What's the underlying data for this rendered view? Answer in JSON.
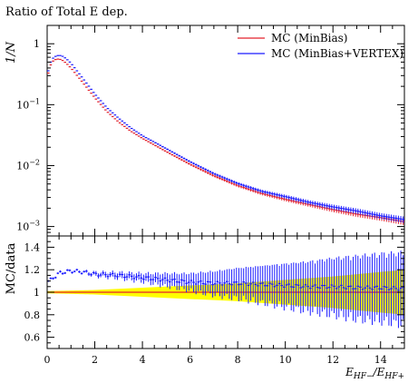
{
  "chart_data": [
    {
      "type": "scatter",
      "panel": "main",
      "title": "Ratio of Total E dep.",
      "ylabel": "1/N",
      "yscale": "log",
      "xlim": [
        0,
        15
      ],
      "ylim": [
        0.0007,
        2.0
      ],
      "x_ticks": [
        "0",
        "2",
        "4",
        "6",
        "8",
        "10",
        "12",
        "14"
      ],
      "y_ticks": [
        {
          "value": 1,
          "label": "1"
        },
        {
          "value": 0.1,
          "label": "10−1"
        },
        {
          "value": 0.01,
          "label": "10−2"
        },
        {
          "value": 0.001,
          "label": "10−3"
        }
      ],
      "legend_position": "top-right",
      "series": [
        {
          "name": "MC (MinBias)",
          "color": "#e3202b",
          "x": [
            0.05,
            0.15,
            0.25,
            0.35,
            0.45,
            0.6,
            0.8,
            1.0,
            1.5,
            2.0,
            2.5,
            3.0,
            3.5,
            4.0,
            5.0,
            6.0,
            7.0,
            8.0,
            9.0,
            10.0,
            11.0,
            12.0,
            13.0,
            14.0,
            15.0
          ],
          "y": [
            0.33,
            0.45,
            0.52,
            0.55,
            0.56,
            0.55,
            0.48,
            0.4,
            0.23,
            0.13,
            0.078,
            0.052,
            0.037,
            0.028,
            0.017,
            0.0105,
            0.0068,
            0.0047,
            0.0035,
            0.0028,
            0.0023,
            0.0019,
            0.0016,
            0.0014,
            0.0012
          ]
        },
        {
          "name": "MC (MinBias+VERTEX)",
          "color": "#1a1aff",
          "x": [
            0.05,
            0.15,
            0.25,
            0.35,
            0.45,
            0.6,
            0.8,
            1.0,
            1.5,
            2.0,
            2.5,
            3.0,
            3.5,
            4.0,
            5.0,
            6.0,
            7.0,
            8.0,
            9.0,
            10.0,
            11.0,
            12.0,
            13.0,
            14.0,
            15.0
          ],
          "y": [
            0.36,
            0.5,
            0.58,
            0.62,
            0.64,
            0.64,
            0.57,
            0.48,
            0.27,
            0.15,
            0.09,
            0.06,
            0.042,
            0.031,
            0.019,
            0.0116,
            0.0074,
            0.0051,
            0.0038,
            0.0031,
            0.0025,
            0.0021,
            0.0018,
            0.0015,
            0.0013
          ]
        }
      ]
    },
    {
      "type": "scatter",
      "panel": "ratio",
      "xlabel": "E_{HF−}/E_{HF+}",
      "ylabel": "MC/data",
      "xlim": [
        0,
        15
      ],
      "ylim": [
        0.5,
        1.5
      ],
      "x_ticks": [
        "0",
        "2",
        "4",
        "6",
        "8",
        "10",
        "12",
        "14"
      ],
      "y_ticks": [
        "0.6",
        "0.8",
        "1",
        "1.2",
        "1.4"
      ],
      "band": {
        "color": "#ffff00",
        "x": [
          0,
          2,
          4,
          6,
          8,
          10,
          12,
          14,
          15
        ],
        "half_width": [
          0.01,
          0.02,
          0.04,
          0.06,
          0.08,
          0.11,
          0.14,
          0.18,
          0.2
        ]
      },
      "series": [
        {
          "name": "MC (MinBias)",
          "color": "#e3202b",
          "x": [
            0,
            15
          ],
          "y": [
            1.0,
            1.0
          ]
        },
        {
          "name": "MC (MinBias+VERTEX)",
          "color": "#1a1aff",
          "x": [
            0.1,
            0.5,
            1.0,
            1.5,
            2.0,
            3.0,
            4.0,
            5.0,
            6.0,
            7.0,
            8.0,
            9.0,
            10.0,
            11.0,
            12.0,
            13.0,
            14.0,
            15.0
          ],
          "y": [
            1.1,
            1.17,
            1.19,
            1.18,
            1.16,
            1.15,
            1.13,
            1.11,
            1.09,
            1.08,
            1.08,
            1.07,
            1.06,
            1.05,
            1.05,
            1.04,
            1.04,
            1.03
          ],
          "err": [
            0.01,
            0.01,
            0.01,
            0.01,
            0.02,
            0.03,
            0.04,
            0.06,
            0.08,
            0.11,
            0.14,
            0.17,
            0.2,
            0.23,
            0.26,
            0.29,
            0.31,
            0.33
          ]
        }
      ]
    }
  ]
}
